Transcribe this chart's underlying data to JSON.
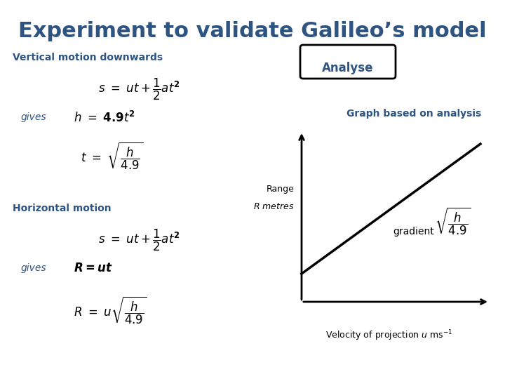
{
  "title": "Experiment to validate Galileo’s model",
  "title_color": "#2E5482",
  "title_fontsize": 22,
  "bg_color": "#FFFFFF",
  "section1_label": "Vertical motion downwards",
  "section2_label": "Horizontal motion",
  "gives_label": "gives",
  "analyse_label": "Analyse",
  "graph_title": "Graph based on analysis",
  "y_axis_label_line1": "Range",
  "y_axis_label_line2": "R metres",
  "x_axis_label": "Velocity of projection $u$ ms⁻¹",
  "gradient_label": "gradient",
  "blue": "#2E5482",
  "black": "#000000"
}
